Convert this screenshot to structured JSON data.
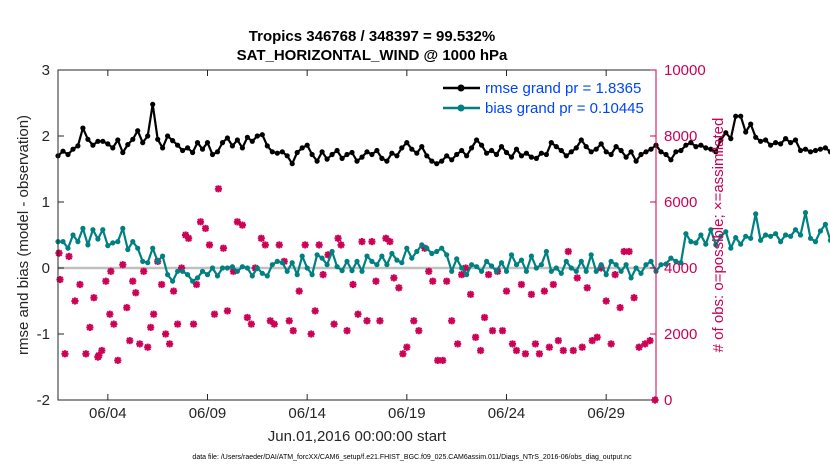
{
  "chart_data": {
    "type": "line",
    "title": "Tropics 346768 / 348397 = 99.532%",
    "subtitle": "SAT_HORIZONTAL_WIND @ 1000 hPa",
    "xlabel": "Jun.01,2016 00:00:00 start",
    "ylabel": "rmse and bias (model - observation)",
    "ylabel_right": "# of obs: o=possible; ×=assimilated",
    "xlim": [
      1.5,
      31.5
    ],
    "ylim": [
      -2,
      3
    ],
    "ylim_right": [
      0,
      10000
    ],
    "x_ticks": [
      4,
      9,
      14,
      19,
      24,
      29
    ],
    "x_tick_labels": [
      "06/04",
      "06/09",
      "06/14",
      "06/19",
      "06/24",
      "06/29"
    ],
    "y_ticks": [
      -2,
      -1,
      0,
      1,
      2,
      3
    ],
    "y_tick_labels": [
      "-2",
      "-1",
      "0",
      "1",
      "2",
      "3"
    ],
    "y_right_ticks": [
      0,
      2000,
      4000,
      6000,
      8000,
      10000
    ],
    "y_right_tick_labels": [
      "0",
      "2000",
      "4000",
      "6000",
      "8000",
      "10000"
    ],
    "zero_line": 0,
    "footnote": "data file: /Users/raeder/DAI/ATM_forcXX/CAM6_setup/f.e21.FHIST_BGC.f09_025.CAM6assim.011/Diags_NTrS_2016-06/obs_diag_output.nc",
    "colors": {
      "rmse": "#000000",
      "bias": "#008080",
      "obs": "#cc0055",
      "zero": "#c0c0c0",
      "legend_text": "#0044ff"
    },
    "series": [
      {
        "name": "rmse grand pr = 1.8365",
        "x_start": 1.5,
        "x_step": 0.25,
        "values": [
          1.7,
          1.77,
          1.72,
          1.8,
          1.85,
          2.12,
          1.95,
          1.86,
          1.92,
          1.92,
          1.88,
          1.82,
          1.94,
          1.75,
          1.87,
          1.95,
          2.08,
          1.9,
          2.0,
          2.48,
          1.95,
          1.82,
          2.0,
          1.93,
          1.86,
          1.78,
          1.82,
          1.75,
          1.9,
          1.8,
          1.9,
          1.72,
          1.76,
          1.9,
          1.97,
          1.85,
          1.94,
          1.82,
          1.98,
          1.92,
          2.0,
          2.02,
          1.85,
          1.76,
          1.74,
          1.76,
          1.7,
          1.58,
          1.75,
          1.82,
          1.86,
          1.72,
          1.62,
          1.76,
          1.65,
          1.72,
          1.78,
          1.66,
          1.72,
          1.75,
          1.62,
          1.68,
          1.76,
          1.72,
          1.78,
          1.66,
          1.62,
          1.74,
          1.7,
          1.82,
          1.9,
          1.8,
          1.74,
          1.84,
          1.7,
          1.62,
          1.58,
          1.62,
          1.7,
          1.64,
          1.72,
          1.78,
          1.7,
          1.82,
          1.94,
          1.86,
          1.74,
          1.78,
          1.72,
          1.84,
          1.75,
          1.68,
          1.8,
          1.7,
          1.74,
          1.68,
          1.66,
          1.74,
          1.72,
          1.9,
          1.84,
          1.78,
          1.7,
          1.76,
          1.82,
          1.94,
          1.84,
          1.76,
          1.8,
          1.88,
          1.76,
          1.72,
          1.84,
          1.78,
          1.68,
          1.76,
          1.62,
          1.72,
          1.76,
          1.8,
          1.86,
          1.76,
          1.72,
          1.64,
          1.76,
          1.78,
          1.86,
          1.9,
          1.84,
          1.86,
          1.82,
          1.8,
          1.76,
          1.94,
          2.05,
          1.96,
          2.3,
          2.3,
          2.06,
          2.18,
          1.98,
          1.92,
          1.94,
          1.86,
          1.9,
          1.88,
          1.96,
          1.9,
          1.94,
          1.78,
          1.8,
          1.76,
          1.78,
          1.8,
          1.82,
          1.76,
          1.9,
          1.84,
          1.94,
          1.98
        ]
      },
      {
        "name": "bias grand pr = 0.10445",
        "x_start": 1.5,
        "x_step": 0.25,
        "values": [
          0.4,
          0.4,
          0.3,
          0.5,
          0.4,
          0.6,
          0.35,
          0.58,
          0.44,
          0.58,
          0.34,
          0.38,
          0.4,
          0.6,
          0.28,
          0.4,
          0.3,
          0.1,
          0.08,
          0.3,
          0.1,
          0.18,
          -0.1,
          -0.2,
          -0.05,
          -0.05,
          -0.1,
          -0.2,
          -0.15,
          -0.05,
          -0.1,
          0.0,
          -0.12,
          0.0,
          0.0,
          0.02,
          -0.05,
          0.02,
          0.0,
          -0.12,
          0.0,
          -0.08,
          -0.12,
          0.05,
          0.1,
          0.08,
          -0.05,
          0.08,
          -0.1,
          0.18,
          0.0,
          -0.1,
          0.2,
          0.15,
          0.05,
          0.25,
          0.02,
          -0.04,
          0.1,
          -0.04,
          0.1,
          -0.05,
          0.18,
          0.1,
          0.05,
          0.18,
          0.05,
          0.22,
          0.12,
          0.08,
          0.3,
          0.15,
          0.25,
          0.35,
          0.3,
          0.22,
          0.25,
          0.3,
          0.2,
          -0.05,
          0.14,
          0.0,
          -0.1,
          0.05,
          0.02,
          -0.05,
          0.1,
          0.03,
          -0.05,
          0.08,
          -0.05,
          0.2,
          0.05,
          0.12,
          -0.05,
          0.18,
          0.0,
          0.05,
          0.25,
          -0.05,
          0.0,
          -0.08,
          0.1,
          0.0,
          -0.05,
          0.1,
          -0.05,
          0.2,
          -0.05,
          0.05,
          -0.1,
          0.1,
          0.05,
          -0.05,
          0.05,
          -0.15,
          0.0,
          -0.08,
          0.05,
          0.1,
          -0.05,
          0.05,
          0.06,
          0.15,
          0.1,
          0.08,
          0.52,
          0.4,
          0.38,
          0.5,
          0.36,
          0.58,
          0.35,
          0.48,
          0.55,
          0.3,
          0.46,
          0.36,
          0.48,
          0.45,
          0.82,
          0.42,
          0.5,
          0.48,
          0.52,
          0.4,
          0.5,
          0.48,
          0.58,
          0.5,
          0.84,
          0.45,
          0.4,
          0.56,
          0.66,
          0.42,
          0.35,
          0.52,
          0.3,
          0.46,
          0.38,
          0.52,
          0.42,
          0.52
        ]
      },
      {
        "name": "obs count (assimilated)",
        "axis": "right",
        "points": [
          [
            1.55,
            4450
          ],
          [
            1.6,
            3650
          ],
          [
            1.85,
            1400
          ],
          [
            2.05,
            4350
          ],
          [
            2.35,
            3000
          ],
          [
            2.6,
            3500
          ],
          [
            2.9,
            1400
          ],
          [
            3.1,
            2200
          ],
          [
            3.3,
            3100
          ],
          [
            3.5,
            1300
          ],
          [
            3.55,
            1350
          ],
          [
            3.7,
            1500
          ],
          [
            3.9,
            3600
          ],
          [
            4.1,
            2600
          ],
          [
            4.15,
            3900
          ],
          [
            4.3,
            2300
          ],
          [
            4.5,
            1200
          ],
          [
            4.75,
            4100
          ],
          [
            4.95,
            2800
          ],
          [
            5.1,
            1800
          ],
          [
            5.25,
            3600
          ],
          [
            5.4,
            3250
          ],
          [
            5.6,
            1700
          ],
          [
            5.8,
            3900
          ],
          [
            6.0,
            1600
          ],
          [
            6.15,
            2200
          ],
          [
            6.3,
            2600
          ],
          [
            6.5,
            4200
          ],
          [
            6.7,
            3500
          ],
          [
            6.9,
            2000
          ],
          [
            7.1,
            1700
          ],
          [
            7.3,
            3300
          ],
          [
            7.5,
            2300
          ],
          [
            7.7,
            4000
          ],
          [
            7.9,
            5000
          ],
          [
            8.05,
            4900
          ],
          [
            8.3,
            2300
          ],
          [
            8.45,
            3500
          ],
          [
            8.65,
            5400
          ],
          [
            8.9,
            5200
          ],
          [
            9.1,
            4700
          ],
          [
            9.35,
            2600
          ],
          [
            9.55,
            6400
          ],
          [
            9.8,
            4600
          ],
          [
            10.0,
            2700
          ],
          [
            10.3,
            3900
          ],
          [
            10.5,
            5400
          ],
          [
            10.75,
            5300
          ],
          [
            11.0,
            2500
          ],
          [
            11.2,
            2300
          ],
          [
            11.4,
            4000
          ],
          [
            11.7,
            4900
          ],
          [
            11.9,
            4700
          ],
          [
            12.15,
            2400
          ],
          [
            12.35,
            2300
          ],
          [
            12.6,
            4700
          ],
          [
            12.85,
            4200
          ],
          [
            13.1,
            2400
          ],
          [
            13.3,
            2100
          ],
          [
            13.6,
            3300
          ],
          [
            13.9,
            4700
          ],
          [
            14.2,
            2000
          ],
          [
            14.4,
            2700
          ],
          [
            14.6,
            4700
          ],
          [
            14.8,
            3800
          ],
          [
            15.05,
            4400
          ],
          [
            15.35,
            2300
          ],
          [
            15.55,
            4900
          ],
          [
            15.7,
            4700
          ],
          [
            16.0,
            2100
          ],
          [
            16.3,
            3500
          ],
          [
            16.55,
            2600
          ],
          [
            16.75,
            4800
          ],
          [
            17.0,
            2400
          ],
          [
            17.25,
            4800
          ],
          [
            17.45,
            3600
          ],
          [
            17.65,
            2400
          ],
          [
            17.95,
            4900
          ],
          [
            18.15,
            4800
          ],
          [
            18.35,
            3700
          ],
          [
            18.6,
            3400
          ],
          [
            18.8,
            1400
          ],
          [
            19.0,
            1600
          ],
          [
            19.35,
            2400
          ],
          [
            19.6,
            2100
          ],
          [
            19.9,
            4600
          ],
          [
            20.1,
            3900
          ],
          [
            20.3,
            3600
          ],
          [
            20.55,
            1200
          ],
          [
            20.8,
            1200
          ],
          [
            21.0,
            3600
          ],
          [
            21.25,
            2400
          ],
          [
            21.55,
            1700
          ],
          [
            21.75,
            3800
          ],
          [
            21.95,
            4000
          ],
          [
            22.2,
            3200
          ],
          [
            22.45,
            1900
          ],
          [
            22.7,
            1500
          ],
          [
            22.9,
            2500
          ],
          [
            23.1,
            3800
          ],
          [
            23.3,
            2100
          ],
          [
            23.55,
            3900
          ],
          [
            23.8,
            2100
          ],
          [
            24.0,
            3300
          ],
          [
            24.3,
            1700
          ],
          [
            24.5,
            1500
          ],
          [
            24.75,
            3500
          ],
          [
            24.95,
            1400
          ],
          [
            25.25,
            3200
          ],
          [
            25.45,
            1700
          ],
          [
            25.65,
            1400
          ],
          [
            25.9,
            3300
          ],
          [
            26.15,
            1600
          ],
          [
            26.35,
            3500
          ],
          [
            26.6,
            1800
          ],
          [
            26.85,
            1500
          ],
          [
            27.1,
            4500
          ],
          [
            27.35,
            1500
          ],
          [
            27.55,
            3700
          ],
          [
            27.8,
            1600
          ],
          [
            28.05,
            3400
          ],
          [
            28.3,
            1800
          ],
          [
            28.55,
            1900
          ],
          [
            28.75,
            4000
          ],
          [
            29.0,
            3000
          ],
          [
            29.25,
            1700
          ],
          [
            29.45,
            3800
          ],
          [
            29.7,
            2800
          ],
          [
            29.9,
            4500
          ],
          [
            30.15,
            4500
          ],
          [
            30.4,
            3100
          ],
          [
            30.65,
            1600
          ],
          [
            30.95,
            1700
          ],
          [
            31.2,
            1800
          ],
          [
            31.45,
            0
          ]
        ]
      }
    ],
    "legend": [
      {
        "label": "rmse grand pr = 1.8365",
        "marker": "circle",
        "color": "#000000"
      },
      {
        "label": "bias grand pr = 0.10445",
        "marker": "circle",
        "color": "#008080"
      }
    ]
  }
}
